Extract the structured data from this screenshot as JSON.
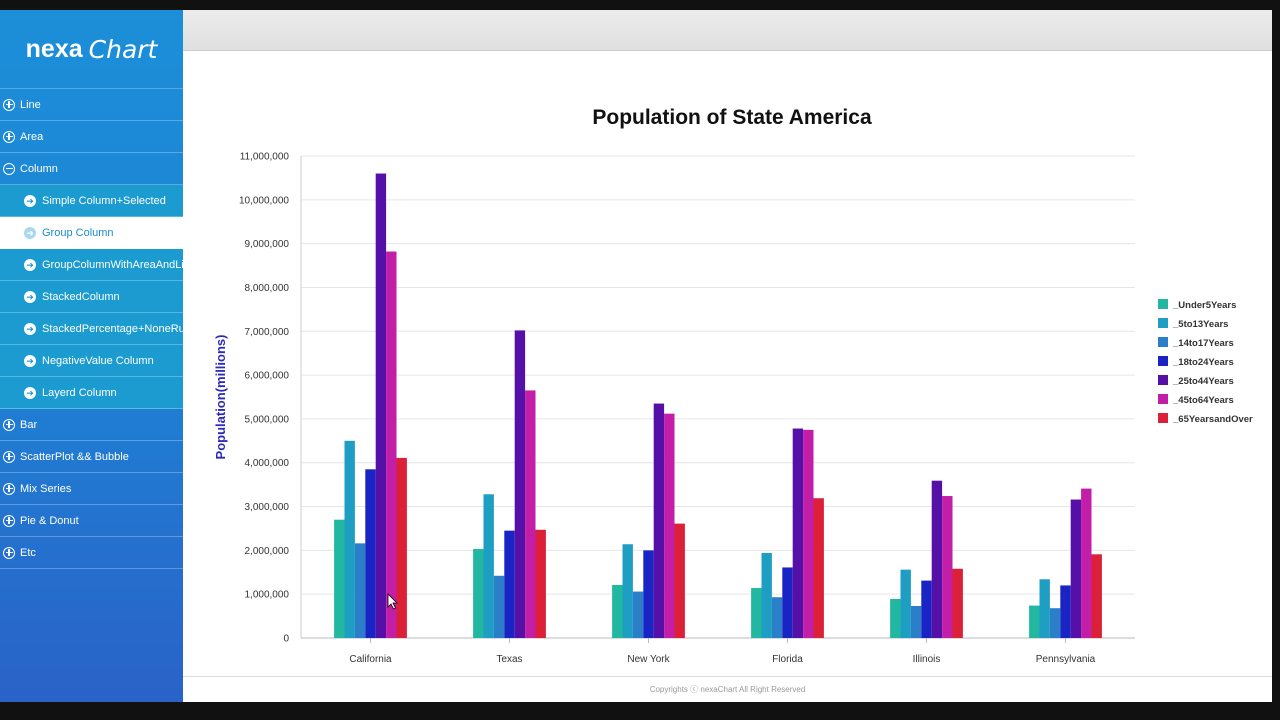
{
  "app": {
    "logo_left": "nexa",
    "logo_right": "Chart",
    "footer": "Copyrights ⓒ nexaChart All Right Reserved"
  },
  "sidebar": {
    "items": [
      {
        "label": "Line",
        "type": "top",
        "icon": "plus-circle-icon"
      },
      {
        "label": "Area",
        "type": "top",
        "icon": "plus-circle-icon"
      },
      {
        "label": "Column",
        "type": "top",
        "icon": "minus-circle-icon"
      },
      {
        "label": "Simple Column+Selected",
        "type": "sub",
        "icon": "arrow-right-circle-icon"
      },
      {
        "label": "Group Column",
        "type": "sub",
        "icon": "arrow-right-circle-icon",
        "active": true
      },
      {
        "label": "GroupColumnWithAreaAndLine",
        "type": "sub",
        "icon": "arrow-right-circle-icon"
      },
      {
        "label": "StackedColumn",
        "type": "sub",
        "icon": "arrow-right-circle-icon"
      },
      {
        "label": "StackedPercentage+NoneRuler",
        "type": "sub",
        "icon": "arrow-right-circle-icon"
      },
      {
        "label": "NegativeValue Column",
        "type": "sub",
        "icon": "arrow-right-circle-icon"
      },
      {
        "label": "Layerd Column",
        "type": "sub",
        "icon": "arrow-right-circle-icon"
      },
      {
        "label": "Bar",
        "type": "top",
        "icon": "plus-circle-icon"
      },
      {
        "label": "ScatterPlot && Bubble",
        "type": "top",
        "icon": "plus-circle-icon"
      },
      {
        "label": "Mix Series",
        "type": "top",
        "icon": "plus-circle-icon"
      },
      {
        "label": "Pie & Donut",
        "type": "top",
        "icon": "plus-circle-icon"
      },
      {
        "label": "Etc",
        "type": "top",
        "icon": "plus-circle-icon"
      }
    ]
  },
  "chart_data": {
    "type": "bar",
    "title": "Population of State America",
    "xlabel": "",
    "ylabel": "Population(millions)",
    "ylim": [
      0,
      11000000
    ],
    "yticks": [
      0,
      1000000,
      2000000,
      3000000,
      4000000,
      5000000,
      6000000,
      7000000,
      8000000,
      9000000,
      10000000,
      11000000
    ],
    "ytick_labels": [
      "0",
      "1,000,000",
      "2,000,000",
      "3,000,000",
      "4,000,000",
      "5,000,000",
      "6,000,000",
      "7,000,000",
      "8,000,000",
      "9,000,000",
      "10,000,000",
      "11,000,000"
    ],
    "grid": true,
    "legend_position": "right",
    "categories": [
      "California",
      "Texas",
      "New York",
      "Florida",
      "Illinois",
      "Pennsylvania"
    ],
    "series": [
      {
        "name": "_Under5Years",
        "color": "#22b7a0",
        "values": [
          2700000,
          2030000,
          1210000,
          1140000,
          890000,
          740000
        ]
      },
      {
        "name": "_5to13Years",
        "color": "#1f9ec4",
        "values": [
          4500000,
          3280000,
          2140000,
          1940000,
          1560000,
          1340000
        ]
      },
      {
        "name": "_14to17Years",
        "color": "#2a7fc8",
        "values": [
          2160000,
          1420000,
          1060000,
          930000,
          730000,
          680000
        ]
      },
      {
        "name": "_18to24Years",
        "color": "#1a24c4",
        "values": [
          3850000,
          2450000,
          2000000,
          1610000,
          1310000,
          1200000
        ]
      },
      {
        "name": "_25to44Years",
        "color": "#5510a8",
        "values": [
          10600000,
          7020000,
          5350000,
          4780000,
          3590000,
          3160000
        ]
      },
      {
        "name": "_45to64Years",
        "color": "#c21ea8",
        "values": [
          8820000,
          5650000,
          5120000,
          4750000,
          3240000,
          3410000
        ]
      },
      {
        "name": "_65YearsandOver",
        "color": "#dc2038",
        "values": [
          4110000,
          2470000,
          2610000,
          3190000,
          1580000,
          1910000
        ]
      }
    ]
  }
}
